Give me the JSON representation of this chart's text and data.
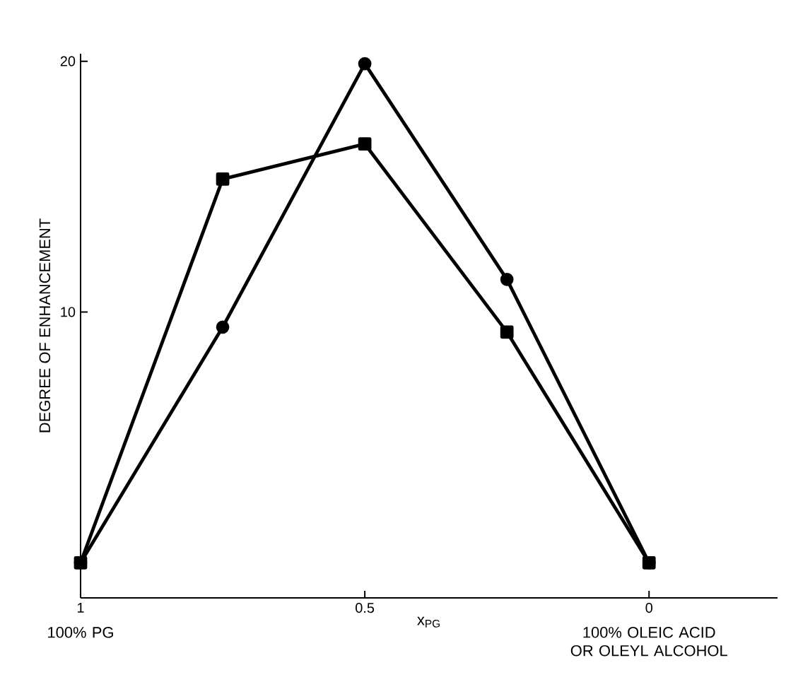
{
  "chart_data": {
    "type": "line",
    "xlabel": "x$_{PG}$",
    "ylabel": "DEGREE OF ENHANCEMENT",
    "x": [
      1,
      0.75,
      0.5,
      0.25,
      0
    ],
    "series": [
      {
        "color": "#000000",
        "marker": "circle",
        "values": [
          0,
          9.4,
          19.9,
          11.3,
          0
        ]
      },
      {
        "color": "#000000",
        "marker": "square",
        "values": [
          0,
          15.3,
          16.7,
          9.2,
          0
        ]
      }
    ],
    "xlim": [
      1,
      -0.226
    ],
    "ylim": [
      -1.4,
      20.3
    ],
    "xticks": [
      1,
      0.5,
      0
    ],
    "yticks": [
      10,
      20
    ],
    "annotations": [
      "100% PG",
      "100% OLEIC ACID OR OLEYL ALCOHOL"
    ],
    "grid": false,
    "line_style": "solid"
  }
}
